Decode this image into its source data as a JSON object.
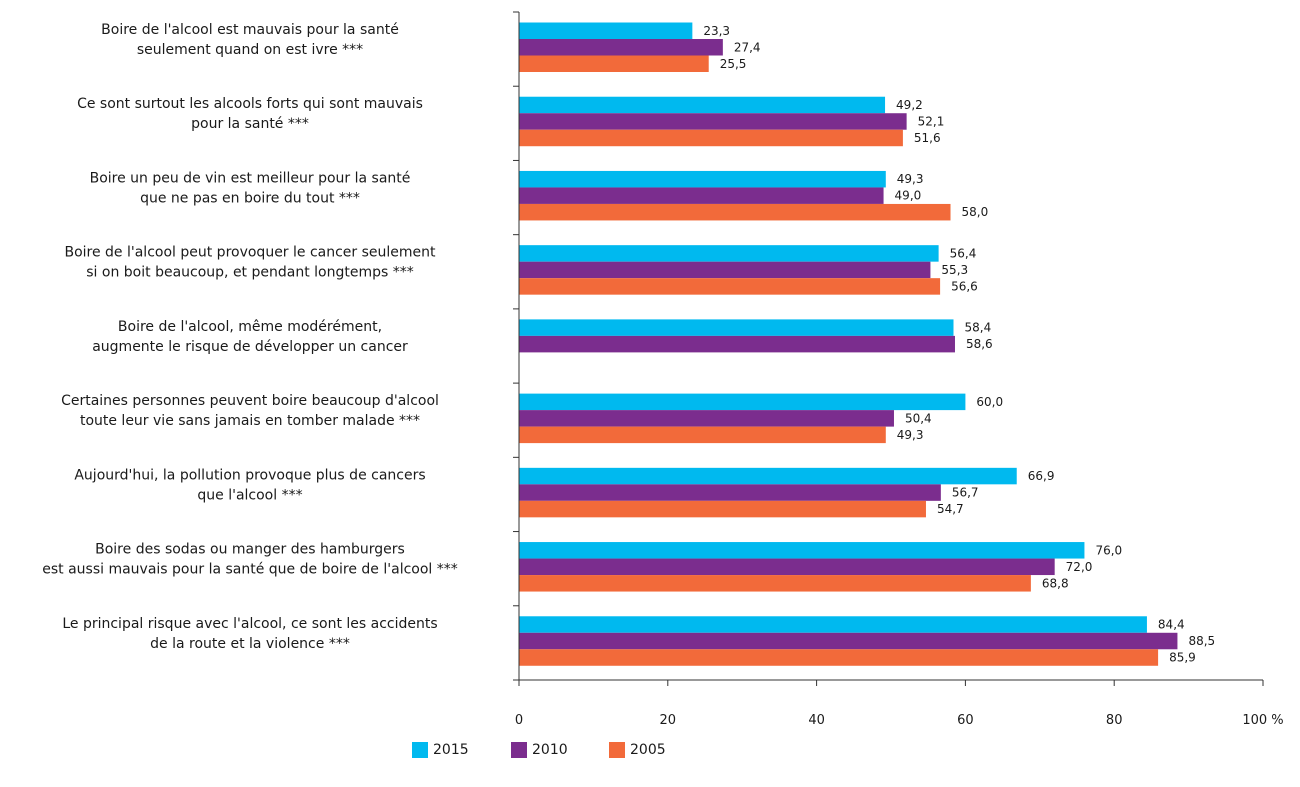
{
  "chart_data": {
    "type": "bar",
    "orientation": "horizontal",
    "categories": [
      [
        "Boire de l'alcool est mauvais pour la santé",
        "seulement quand on est ivre ***"
      ],
      [
        "Ce sont surtout les alcools forts qui sont mauvais",
        "pour la santé ***"
      ],
      [
        "Boire un peu de vin est meilleur pour la santé",
        "que ne pas en boire du tout ***"
      ],
      [
        "Boire de l'alcool peut provoquer le cancer seulement",
        "si on boit beaucoup, et pendant longtemps ***"
      ],
      [
        "Boire de l'alcool, même modérément,",
        "augmente le risque de développer un cancer"
      ],
      [
        "Certaines personnes peuvent boire beaucoup d'alcool",
        "toute leur vie sans jamais en tomber malade ***"
      ],
      [
        "Aujourd'hui, la pollution provoque plus de cancers",
        "que l'alcool ***"
      ],
      [
        "Boire des sodas ou manger des hamburgers",
        "est aussi mauvais pour la santé que de boire de l'alcool ***"
      ],
      [
        "Le principal risque avec l'alcool, ce sont les accidents",
        "de la route et la violence ***"
      ]
    ],
    "series": [
      {
        "name": "2015",
        "color": "#00b9ef",
        "values": [
          23.3,
          49.2,
          49.3,
          56.4,
          58.4,
          60.0,
          66.9,
          76.0,
          84.4
        ],
        "labels": [
          "23,3",
          "49,2",
          "49,3",
          "56,4",
          "58,4",
          "60,0",
          "66,9",
          "76,0",
          "84,4"
        ]
      },
      {
        "name": "2010",
        "color": "#7b2d8e",
        "values": [
          27.4,
          52.1,
          49.0,
          55.3,
          58.6,
          50.4,
          56.7,
          72.0,
          88.5
        ],
        "labels": [
          "27,4",
          "52,1",
          "49,0",
          "55,3",
          "58,6",
          "50,4",
          "56,7",
          "72,0",
          "88,5"
        ]
      },
      {
        "name": "2005",
        "color": "#f26a3a",
        "values": [
          25.5,
          51.6,
          58.0,
          56.6,
          null,
          49.3,
          54.7,
          68.8,
          85.9
        ],
        "labels": [
          "25,5",
          "51,6",
          "58,0",
          "56,6",
          "",
          "49,3",
          "54,7",
          "68,8",
          "85,9"
        ]
      }
    ],
    "xlim": [
      0,
      100
    ],
    "xticks": [
      0,
      20,
      40,
      60,
      80,
      100
    ],
    "xtick_labels": [
      "0",
      "20",
      "40",
      "60",
      "80",
      "100 %"
    ],
    "grid": false,
    "legend": "bottom-center"
  }
}
